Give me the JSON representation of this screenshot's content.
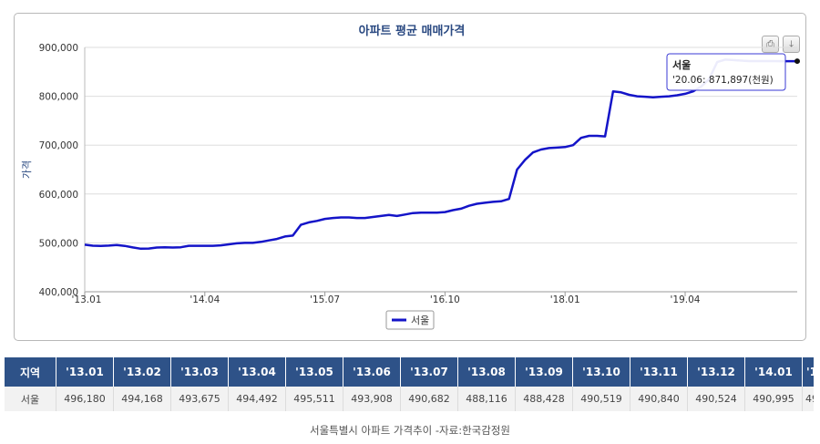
{
  "chart_data": {
    "type": "line",
    "title": "아파트 평균 매매가격",
    "ylabel": "가격",
    "ylim": [
      400000,
      900000
    ],
    "yticks": [
      "400,000",
      "500,000",
      "600,000",
      "700,000",
      "800,000",
      "900,000"
    ],
    "xticks": [
      "'13.01",
      "'14.04",
      "'15.07",
      "'16.10",
      "'18.01",
      "'19.04"
    ],
    "x": [
      "2013-01",
      "2013-02",
      "2013-03",
      "2013-04",
      "2013-05",
      "2013-06",
      "2013-07",
      "2013-08",
      "2013-09",
      "2013-10",
      "2013-11",
      "2013-12",
      "2014-01",
      "2014-02",
      "2014-03",
      "2014-04",
      "2014-05",
      "2014-06",
      "2014-07",
      "2014-08",
      "2014-09",
      "2014-10",
      "2014-11",
      "2014-12",
      "2015-01",
      "2015-02",
      "2015-03",
      "2015-04",
      "2015-05",
      "2015-06",
      "2015-07",
      "2015-08",
      "2015-09",
      "2015-10",
      "2015-11",
      "2015-12",
      "2016-01",
      "2016-02",
      "2016-03",
      "2016-04",
      "2016-05",
      "2016-06",
      "2016-07",
      "2016-08",
      "2016-09",
      "2016-10",
      "2016-11",
      "2016-12",
      "2017-01",
      "2017-02",
      "2017-03",
      "2017-04",
      "2017-05",
      "2017-06",
      "2017-07",
      "2017-08",
      "2017-09",
      "2017-10",
      "2017-11",
      "2017-12",
      "2018-01",
      "2018-02",
      "2018-03",
      "2018-04",
      "2018-05",
      "2018-06",
      "2018-07",
      "2018-08",
      "2018-09",
      "2018-10",
      "2018-11",
      "2018-12",
      "2019-01",
      "2019-02",
      "2019-03",
      "2019-04",
      "2019-05",
      "2019-06",
      "2019-07",
      "2019-08",
      "2019-09",
      "2019-10",
      "2019-11",
      "2019-12",
      "2020-01",
      "2020-02",
      "2020-03",
      "2020-04",
      "2020-05",
      "2020-06"
    ],
    "series": [
      {
        "name": "서울",
        "color": "#1414c8",
        "values": [
          496180,
          494168,
          493675,
          494492,
          495511,
          493908,
          490682,
          488116,
          488428,
          490519,
          490840,
          490524,
          490995,
          494000,
          494000,
          494000,
          494000,
          495000,
          497000,
          499000,
          500000,
          500000,
          502000,
          505000,
          508000,
          513000,
          515000,
          537000,
          542000,
          545000,
          549000,
          551000,
          552000,
          552000,
          551000,
          551000,
          553000,
          555000,
          557000,
          555000,
          558000,
          561000,
          562000,
          562000,
          562000,
          563000,
          567000,
          570000,
          576000,
          580000,
          582000,
          584000,
          585000,
          590000,
          650000,
          670000,
          685000,
          691000,
          694000,
          695000,
          696000,
          700000,
          715000,
          719000,
          719000,
          718000,
          810000,
          808000,
          803000,
          800000,
          799000,
          798000,
          799000,
          800000,
          802000,
          805000,
          810000,
          820000,
          835000,
          870000,
          875000,
          874000,
          873000,
          872000,
          872000,
          872000,
          872000,
          871897,
          871897,
          871897
        ]
      }
    ],
    "tooltip": {
      "series": "서울",
      "text": "'20.06: 871,897(천원)"
    },
    "legend": "bottom",
    "grid": true
  },
  "toolbar": {
    "print_icon": "print-icon",
    "download_icon": "download-icon"
  },
  "table": {
    "header": [
      "지역",
      "'13.01",
      "'13.02",
      "'13.03",
      "'13.04",
      "'13.05",
      "'13.06",
      "'13.07",
      "'13.08",
      "'13.09",
      "'13.10",
      "'13.11",
      "'13.12",
      "'14.01",
      "'1"
    ],
    "row_label": "서울",
    "row": [
      "496,180",
      "494,168",
      "493,675",
      "494,492",
      "495,511",
      "493,908",
      "490,682",
      "488,116",
      "488,428",
      "490,519",
      "490,840",
      "490,524",
      "490,995",
      "49"
    ]
  },
  "caption": "서울특별시 아파트 가격추이 -자료:한국감정원",
  "colors": {
    "header_bg": "#2e5288",
    "line": "#1414c8",
    "grid": "#dddddd"
  }
}
